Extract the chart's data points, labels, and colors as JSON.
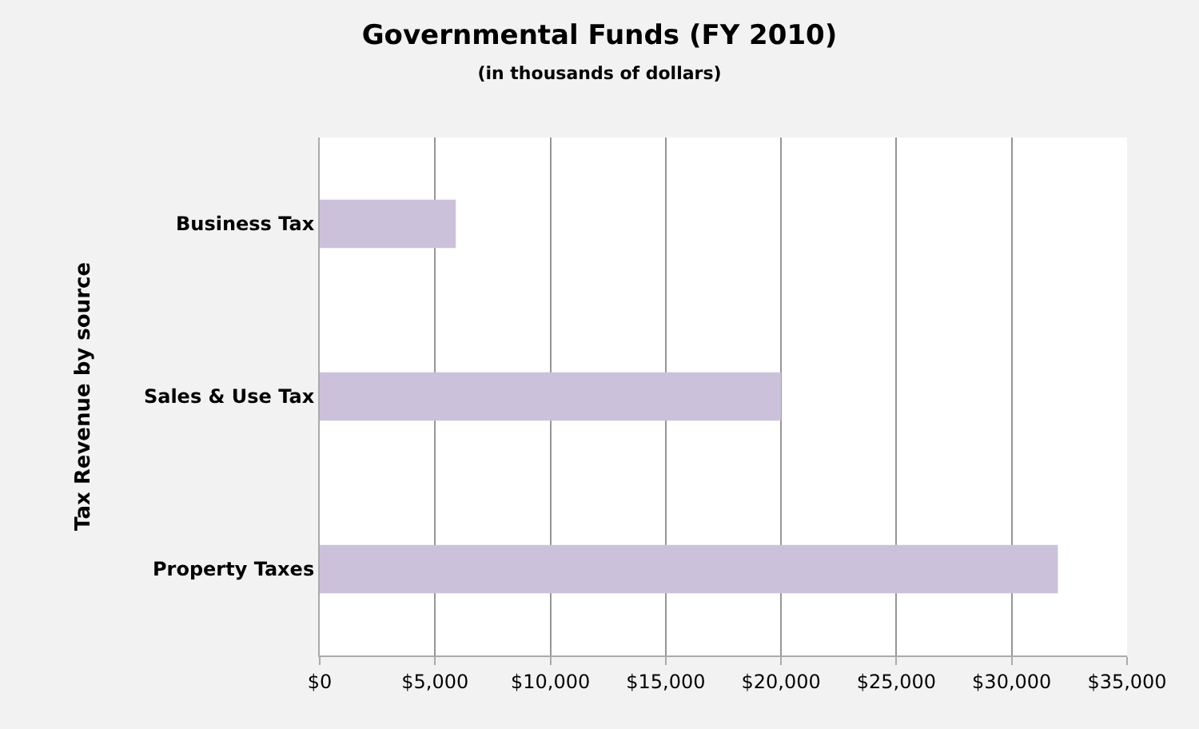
{
  "chart_data": {
    "type": "bar",
    "orientation": "horizontal",
    "title": "Governmental Funds (FY 2010)",
    "subtitle": "(in thousands of dollars)",
    "ylabel": "Tax Revenue by source",
    "categories": [
      "Business Tax",
      "Sales & Use Tax",
      "Property Taxes"
    ],
    "values": [
      5900,
      20000,
      32000
    ],
    "color": "#ccc1da",
    "xlim": [
      0,
      35000
    ],
    "xticks": [
      {
        "value": 0,
        "label": "$0"
      },
      {
        "value": 5000,
        "label": "$5,000"
      },
      {
        "value": 10000,
        "label": "$10,000"
      },
      {
        "value": 15000,
        "label": "$15,000"
      },
      {
        "value": 20000,
        "label": "$20,000"
      },
      {
        "value": 25000,
        "label": "$25,000"
      },
      {
        "value": 30000,
        "label": "$30,000"
      },
      {
        "value": 35000,
        "label": "$35,000"
      }
    ],
    "grid": "x"
  }
}
